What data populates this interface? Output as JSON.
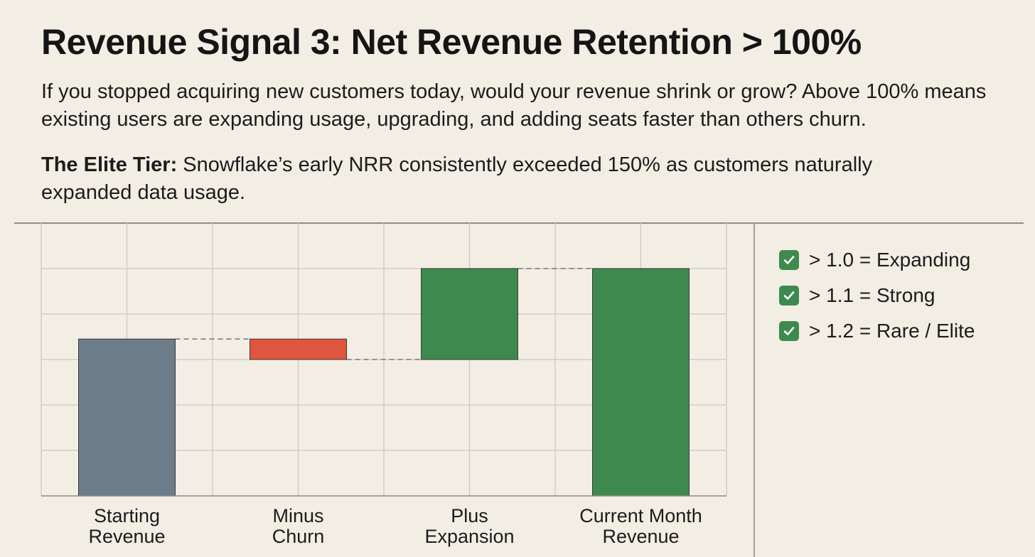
{
  "header": {
    "title": "Revenue Signal 3: Net Revenue Retention > 100%",
    "subtitle": "If you stopped acquiring new customers today, would your revenue shrink or grow? Above 100% means existing users are expanding usage, upgrading, and adding seats faster than others churn.",
    "tier_label": "The Elite Tier:",
    "tier_text": " Snowflake’s early NRR consistently exceeded 150% as customers naturally expanded data usage."
  },
  "legend": {
    "items": [
      {
        "label": "> 1.0 = Expanding",
        "icon": "check-icon"
      },
      {
        "label": "> 1.1 = Strong",
        "icon": "check-icon"
      },
      {
        "label": "> 1.2 = Rare / Elite",
        "icon": "check-icon"
      }
    ]
  },
  "colors": {
    "starting": "#6d7c89",
    "churn": "#e0553d",
    "expansion": "#3e8a4e",
    "current": "#3e8a4e",
    "grid": "#cfcdc6",
    "connector": "#7a7a7a",
    "check": "#3e8a4e"
  },
  "chart_data": {
    "type": "bar",
    "subtype": "waterfall",
    "categories": [
      [
        "Starting",
        "Revenue"
      ],
      [
        "Minus",
        "Churn"
      ],
      [
        "Plus",
        "Expansion"
      ],
      [
        "Current Month",
        "Revenue"
      ]
    ],
    "bars": [
      {
        "label": "Starting Revenue",
        "base": 0,
        "value": 3.45,
        "color_key": "starting"
      },
      {
        "label": "Minus Churn",
        "base": 3.0,
        "value": 3.45,
        "color_key": "churn"
      },
      {
        "label": "Plus Expansion",
        "base": 3.0,
        "value": 5.0,
        "color_key": "expansion"
      },
      {
        "label": "Current Month Revenue",
        "base": 0,
        "value": 5.0,
        "color_key": "current"
      }
    ],
    "connectors": [
      {
        "from": 0,
        "to": 1,
        "level": 3.45
      },
      {
        "from": 1,
        "to": 2,
        "level": 3.0
      },
      {
        "from": 2,
        "to": 3,
        "level": 5.0
      }
    ],
    "ylim": [
      0,
      6
    ],
    "grid": true,
    "xlabel": "",
    "ylabel": ""
  }
}
